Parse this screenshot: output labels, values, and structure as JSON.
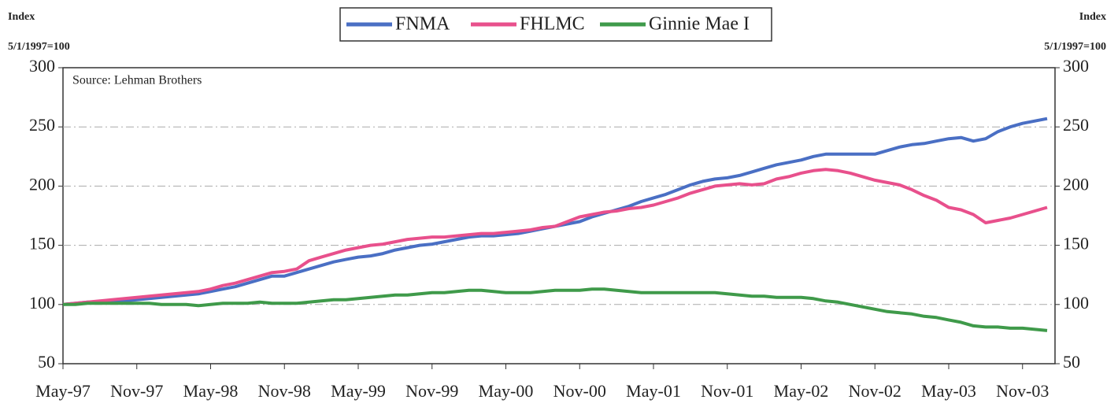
{
  "chart_data": {
    "type": "line",
    "y_label": "Index",
    "y_label_sub": "5/1/1997=100",
    "y2_label": "Index",
    "y2_label_sub": "5/1/1997=100",
    "annotation": "Source: Lehman Brothers",
    "categories": [
      "May-97",
      null,
      null,
      null,
      null,
      null,
      "Nov-97",
      null,
      null,
      null,
      null,
      null,
      "May-98",
      null,
      null,
      null,
      null,
      null,
      "Nov-98",
      null,
      null,
      null,
      null,
      null,
      "May-99",
      null,
      null,
      null,
      null,
      null,
      "Nov-99",
      null,
      null,
      null,
      null,
      null,
      "May-00",
      null,
      null,
      null,
      null,
      null,
      "Nov-00",
      null,
      null,
      null,
      null,
      null,
      "May-01",
      null,
      null,
      null,
      null,
      null,
      "Nov-01",
      null,
      null,
      null,
      null,
      null,
      "May-02",
      null,
      null,
      null,
      null,
      null,
      "Nov-02",
      null,
      null,
      null,
      null,
      null,
      "May-03",
      null,
      null,
      null,
      null,
      null,
      "Nov-03",
      null,
      null
    ],
    "series": [
      {
        "name": "FNMA",
        "color": "#4a6fc4",
        "values": [
          100,
          101,
          102,
          102,
          103,
          103,
          104,
          105,
          106,
          107,
          108,
          109,
          111,
          113,
          115,
          118,
          121,
          124,
          124,
          127,
          130,
          133,
          136,
          138,
          140,
          141,
          143,
          146,
          148,
          150,
          151,
          153,
          155,
          157,
          158,
          158,
          159,
          160,
          162,
          164,
          166,
          168,
          170,
          174,
          177,
          180,
          183,
          187,
          190,
          193,
          197,
          201,
          204,
          206,
          207,
          209,
          212,
          215,
          218,
          220,
          222,
          225,
          227,
          227,
          227,
          227,
          227,
          230,
          233,
          235,
          236,
          238,
          240,
          241,
          238,
          240,
          246,
          250,
          253,
          255,
          257
        ]
      },
      {
        "name": "FHLMC",
        "color": "#e8508c",
        "values": [
          100,
          101,
          102,
          103,
          104,
          105,
          106,
          107,
          108,
          109,
          110,
          111,
          113,
          116,
          118,
          121,
          124,
          127,
          128,
          130,
          137,
          140,
          143,
          146,
          148,
          150,
          151,
          153,
          155,
          156,
          157,
          157,
          158,
          159,
          160,
          160,
          161,
          162,
          163,
          165,
          166,
          170,
          174,
          176,
          178,
          179,
          181,
          182,
          184,
          187,
          190,
          194,
          197,
          200,
          201,
          202,
          201,
          202,
          206,
          208,
          211,
          213,
          214,
          213,
          211,
          208,
          205,
          203,
          201,
          197,
          192,
          188,
          182,
          180,
          176,
          169,
          171,
          173,
          176,
          179,
          182
        ]
      },
      {
        "name": "Ginnie Mae I",
        "color": "#3f9a4a",
        "values": [
          100,
          100,
          101,
          101,
          101,
          101,
          101,
          101,
          100,
          100,
          100,
          99,
          100,
          101,
          101,
          101,
          102,
          101,
          101,
          101,
          102,
          103,
          104,
          104,
          105,
          106,
          107,
          108,
          108,
          109,
          110,
          110,
          111,
          112,
          112,
          111,
          110,
          110,
          110,
          111,
          112,
          112,
          112,
          113,
          113,
          112,
          111,
          110,
          110,
          110,
          110,
          110,
          110,
          110,
          109,
          108,
          107,
          107,
          106,
          106,
          106,
          105,
          103,
          102,
          100,
          98,
          96,
          94,
          93,
          92,
          90,
          89,
          87,
          85,
          82,
          81,
          81,
          80,
          80,
          79,
          78
        ]
      }
    ],
    "ylim": [
      50,
      300
    ],
    "yticks": [
      50,
      100,
      150,
      200,
      250,
      300
    ],
    "y2lim": [
      50,
      300
    ],
    "y2ticks": [
      50,
      100,
      150,
      200,
      250,
      300
    ],
    "grid": true
  }
}
